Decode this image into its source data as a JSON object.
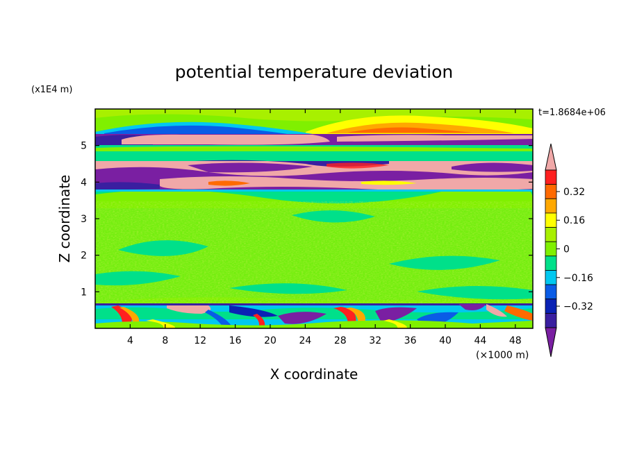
{
  "chart_data": {
    "type": "heatmap",
    "title": "potential temperature deviation",
    "xlabel": "X coordinate",
    "ylabel": "Z coordinate",
    "x_unit": "(×1000 m)",
    "y_unit": "(x1E4 m)",
    "time_label": "t=1.8684e+06",
    "xlim": [
      0,
      50
    ],
    "ylim": [
      0,
      6
    ],
    "x_ticks": [
      "4",
      "8",
      "12",
      "16",
      "20",
      "24",
      "28",
      "32",
      "36",
      "40",
      "44",
      "48"
    ],
    "x_tick_values": [
      4,
      8,
      12,
      16,
      20,
      24,
      28,
      32,
      36,
      40,
      44,
      48
    ],
    "y_ticks": [
      "1",
      "2",
      "3",
      "4",
      "5"
    ],
    "y_tick_values": [
      1,
      2,
      3,
      4,
      5
    ],
    "colorbar": {
      "levels": [
        -0.48,
        -0.4,
        -0.32,
        -0.24,
        -0.16,
        -0.08,
        0,
        0.08,
        0.16,
        0.24,
        0.32,
        0.4,
        0.48
      ],
      "tick_labels": [
        "0.32",
        "0.16",
        "0",
        "−0.16",
        "−0.32"
      ],
      "tick_values": [
        0.32,
        0.16,
        0,
        -0.16,
        -0.32
      ],
      "colors": [
        "#7a1fa2",
        "#3a1fa0",
        "#0a22b4",
        "#0a5ce6",
        "#00c8f0",
        "#00e08a",
        "#80f000",
        "#a8f000",
        "#ffff00",
        "#ffa800",
        "#ff6a00",
        "#ff2020",
        "#f0a8a8"
      ],
      "extend": "both"
    },
    "bands": [
      {
        "z": [
          5.6,
          5.95
        ],
        "value": 0.05,
        "desc": "green/yellow top"
      },
      {
        "z": [
          5.0,
          5.3
        ],
        "value": -0.45,
        "desc": "purple band"
      },
      {
        "z": [
          5.15,
          5.35
        ],
        "value": 0.48,
        "desc": "pink band"
      },
      {
        "z": [
          4.2,
          4.6
        ],
        "value": 0.45,
        "desc": "pink layer"
      },
      {
        "z": [
          3.75,
          4.2
        ],
        "value": -0.4,
        "desc": "purple layer"
      },
      {
        "z": [
          0.7,
          3.75
        ],
        "value": 0.02,
        "desc": "green interior"
      },
      {
        "z": [
          0,
          0.7
        ],
        "value": -0.2,
        "desc": "turbulent bottom"
      }
    ]
  }
}
